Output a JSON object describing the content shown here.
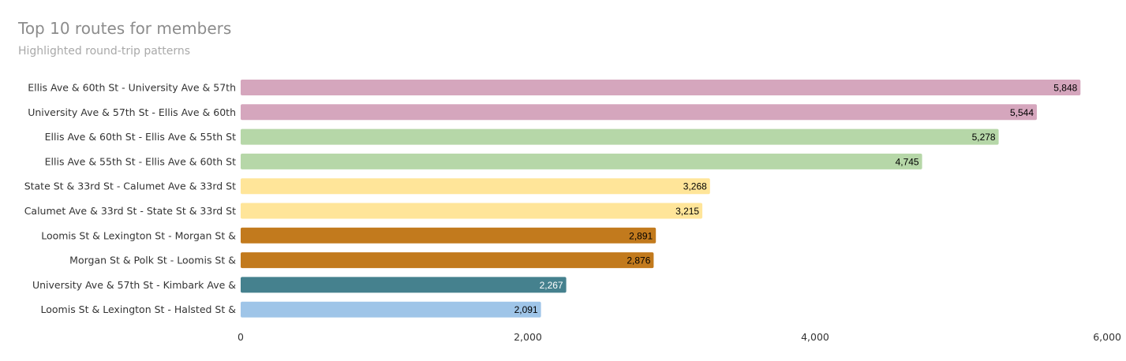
{
  "chart_data": {
    "type": "bar",
    "orientation": "horizontal",
    "title": "Top 10 routes for members",
    "subtitle": "Highlighted round-trip patterns",
    "categories": [
      "Ellis Ave & 60th St - University Ave & 57th",
      "University Ave & 57th St - Ellis Ave & 60th",
      "Ellis Ave & 60th St - Ellis Ave & 55th St",
      "Ellis Ave & 55th St - Ellis Ave & 60th St",
      "State St & 33rd St - Calumet Ave & 33rd St",
      "Calumet Ave & 33rd St - State St & 33rd St",
      "Loomis St & Lexington St - Morgan St &",
      "Morgan St & Polk St - Loomis St &",
      "University Ave & 57th St - Kimbark Ave &",
      "Loomis St & Lexington St - Halsted St &"
    ],
    "values": [
      5848,
      5544,
      5278,
      4745,
      3268,
      3215,
      2891,
      2876,
      2267,
      2091
    ],
    "value_labels": [
      "5,848",
      "5,544",
      "5,278",
      "4,745",
      "3,268",
      "3,215",
      "2,891",
      "2,876",
      "2,267",
      "2,091"
    ],
    "colors": [
      "#d5a6bd",
      "#d5a6bd",
      "#b6d7a8",
      "#b6d7a8",
      "#ffe599",
      "#ffe599",
      "#c27a1d",
      "#c27a1d",
      "#45818e",
      "#9fc5e8"
    ],
    "label_colors": [
      "#000000",
      "#000000",
      "#000000",
      "#000000",
      "#000000",
      "#000000",
      "#000000",
      "#000000",
      "#ffffff",
      "#000000"
    ],
    "xlim": [
      0,
      6000
    ],
    "xticks": [
      0,
      2000,
      4000,
      6000
    ],
    "xtick_labels": [
      "0",
      "2,000",
      "4,000",
      "6,000"
    ],
    "grid": false,
    "legend": "none"
  }
}
